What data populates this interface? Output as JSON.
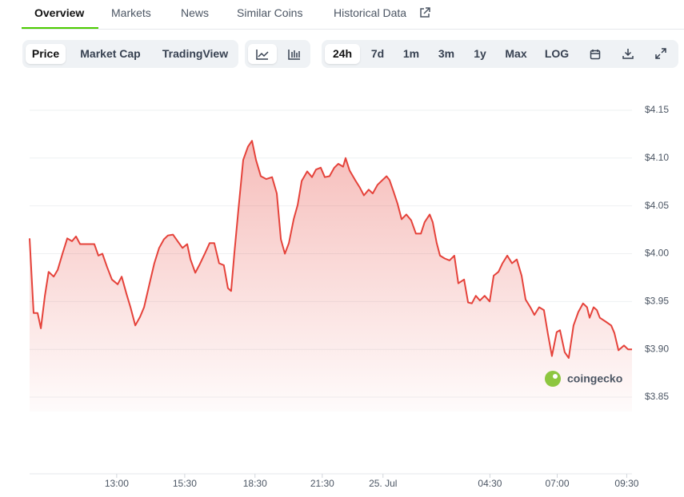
{
  "tabs": [
    "Overview",
    "Markets",
    "News",
    "Similar Coins",
    "Historical Data"
  ],
  "chart_modes": [
    "Price",
    "Market Cap",
    "TradingView"
  ],
  "ranges": [
    "24h",
    "7d",
    "1m",
    "3m",
    "1y",
    "Max",
    "LOG"
  ],
  "watermark": "coingecko",
  "chart_data": {
    "type": "line",
    "color": "#e5423a",
    "grid": true,
    "xlim": [
      0,
      24
    ],
    "ylim": [
      3.835,
      4.17
    ],
    "xticks": [
      {
        "value": 3.47,
        "label": "13:00"
      },
      {
        "value": 6.18,
        "label": "15:30"
      },
      {
        "value": 8.98,
        "label": "18:30"
      },
      {
        "value": 11.66,
        "label": "21:30"
      },
      {
        "value": 14.08,
        "label": "25. Jul"
      },
      {
        "value": 18.34,
        "label": "04:30"
      },
      {
        "value": 21.02,
        "label": "07:00"
      },
      {
        "value": 23.79,
        "label": "09:30"
      }
    ],
    "yticks": [
      {
        "value": 3.85,
        "label": "$3.85"
      },
      {
        "value": 3.9,
        "label": "$3.90"
      },
      {
        "value": 3.95,
        "label": "$3.95"
      },
      {
        "value": 4.0,
        "label": "$4.00"
      },
      {
        "value": 4.05,
        "label": "$4.05"
      },
      {
        "value": 4.1,
        "label": "$4.10"
      },
      {
        "value": 4.15,
        "label": "$4.15"
      }
    ],
    "x": [
      0,
      0.16,
      0.32,
      0.45,
      0.61,
      0.76,
      0.96,
      1.12,
      1.31,
      1.5,
      1.69,
      1.85,
      2.01,
      2.26,
      2.58,
      2.74,
      2.9,
      3.09,
      3.28,
      3.51,
      3.67,
      3.86,
      4.02,
      4.21,
      4.4,
      4.56,
      4.78,
      4.97,
      5.16,
      5.35,
      5.51,
      5.71,
      5.9,
      6.09,
      6.28,
      6.41,
      6.6,
      6.76,
      6.98,
      7.17,
      7.36,
      7.55,
      7.74,
      7.9,
      8.03,
      8.16,
      8.32,
      8.51,
      8.7,
      8.86,
      9.02,
      9.21,
      9.43,
      9.66,
      9.85,
      10.01,
      10.17,
      10.33,
      10.52,
      10.68,
      10.84,
      11.06,
      11.25,
      11.41,
      11.6,
      11.76,
      11.95,
      12.14,
      12.3,
      12.49,
      12.59,
      12.75,
      12.97,
      13.16,
      13.32,
      13.51,
      13.67,
      13.86,
      14.06,
      14.22,
      14.34,
      14.5,
      14.66,
      14.82,
      15.01,
      15.2,
      15.39,
      15.59,
      15.74,
      15.94,
      16.06,
      16.22,
      16.35,
      16.54,
      16.73,
      16.92,
      17.08,
      17.31,
      17.47,
      17.62,
      17.78,
      17.94,
      18.13,
      18.33,
      18.49,
      18.68,
      18.84,
      19.03,
      19.22,
      19.41,
      19.6,
      19.76,
      19.95,
      20.11,
      20.3,
      20.49,
      20.65,
      20.81,
      21.0,
      21.13,
      21.32,
      21.48,
      21.67,
      21.86,
      22.05,
      22.21,
      22.31,
      22.47,
      22.6,
      22.72,
      22.95,
      23.17,
      23.3,
      23.46,
      23.68,
      23.84,
      24.0
    ],
    "values": [
      4.016,
      3.938,
      3.938,
      3.922,
      3.956,
      3.981,
      3.976,
      3.983,
      4.0,
      4.016,
      4.013,
      4.018,
      4.01,
      4.01,
      4.01,
      3.998,
      4.0,
      3.986,
      3.973,
      3.968,
      3.976,
      3.958,
      3.944,
      3.925,
      3.934,
      3.944,
      3.969,
      3.99,
      4.006,
      4.015,
      4.019,
      4.02,
      4.013,
      4.006,
      4.01,
      3.994,
      3.98,
      3.988,
      4.0,
      4.011,
      4.011,
      3.99,
      3.988,
      3.964,
      3.961,
      4.001,
      4.046,
      4.098,
      4.112,
      4.118,
      4.098,
      4.081,
      4.078,
      4.08,
      4.063,
      4.015,
      4.0,
      4.011,
      4.036,
      4.051,
      4.076,
      4.086,
      4.08,
      4.088,
      4.09,
      4.08,
      4.081,
      4.09,
      4.094,
      4.091,
      4.1,
      4.087,
      4.077,
      4.069,
      4.061,
      4.067,
      4.063,
      4.072,
      4.077,
      4.081,
      4.077,
      4.065,
      4.052,
      4.036,
      4.041,
      4.035,
      4.021,
      4.021,
      4.033,
      4.041,
      4.033,
      4.011,
      3.998,
      3.995,
      3.993,
      3.998,
      3.969,
      3.973,
      3.949,
      3.948,
      3.956,
      3.951,
      3.956,
      3.95,
      3.977,
      3.981,
      3.99,
      3.998,
      3.99,
      3.994,
      3.977,
      3.952,
      3.944,
      3.936,
      3.944,
      3.941,
      3.916,
      3.893,
      3.918,
      3.92,
      3.897,
      3.891,
      3.925,
      3.939,
      3.948,
      3.944,
      3.933,
      3.944,
      3.941,
      3.933,
      3.929,
      3.925,
      3.917,
      3.899,
      3.904,
      3.9,
      3.9
    ]
  }
}
